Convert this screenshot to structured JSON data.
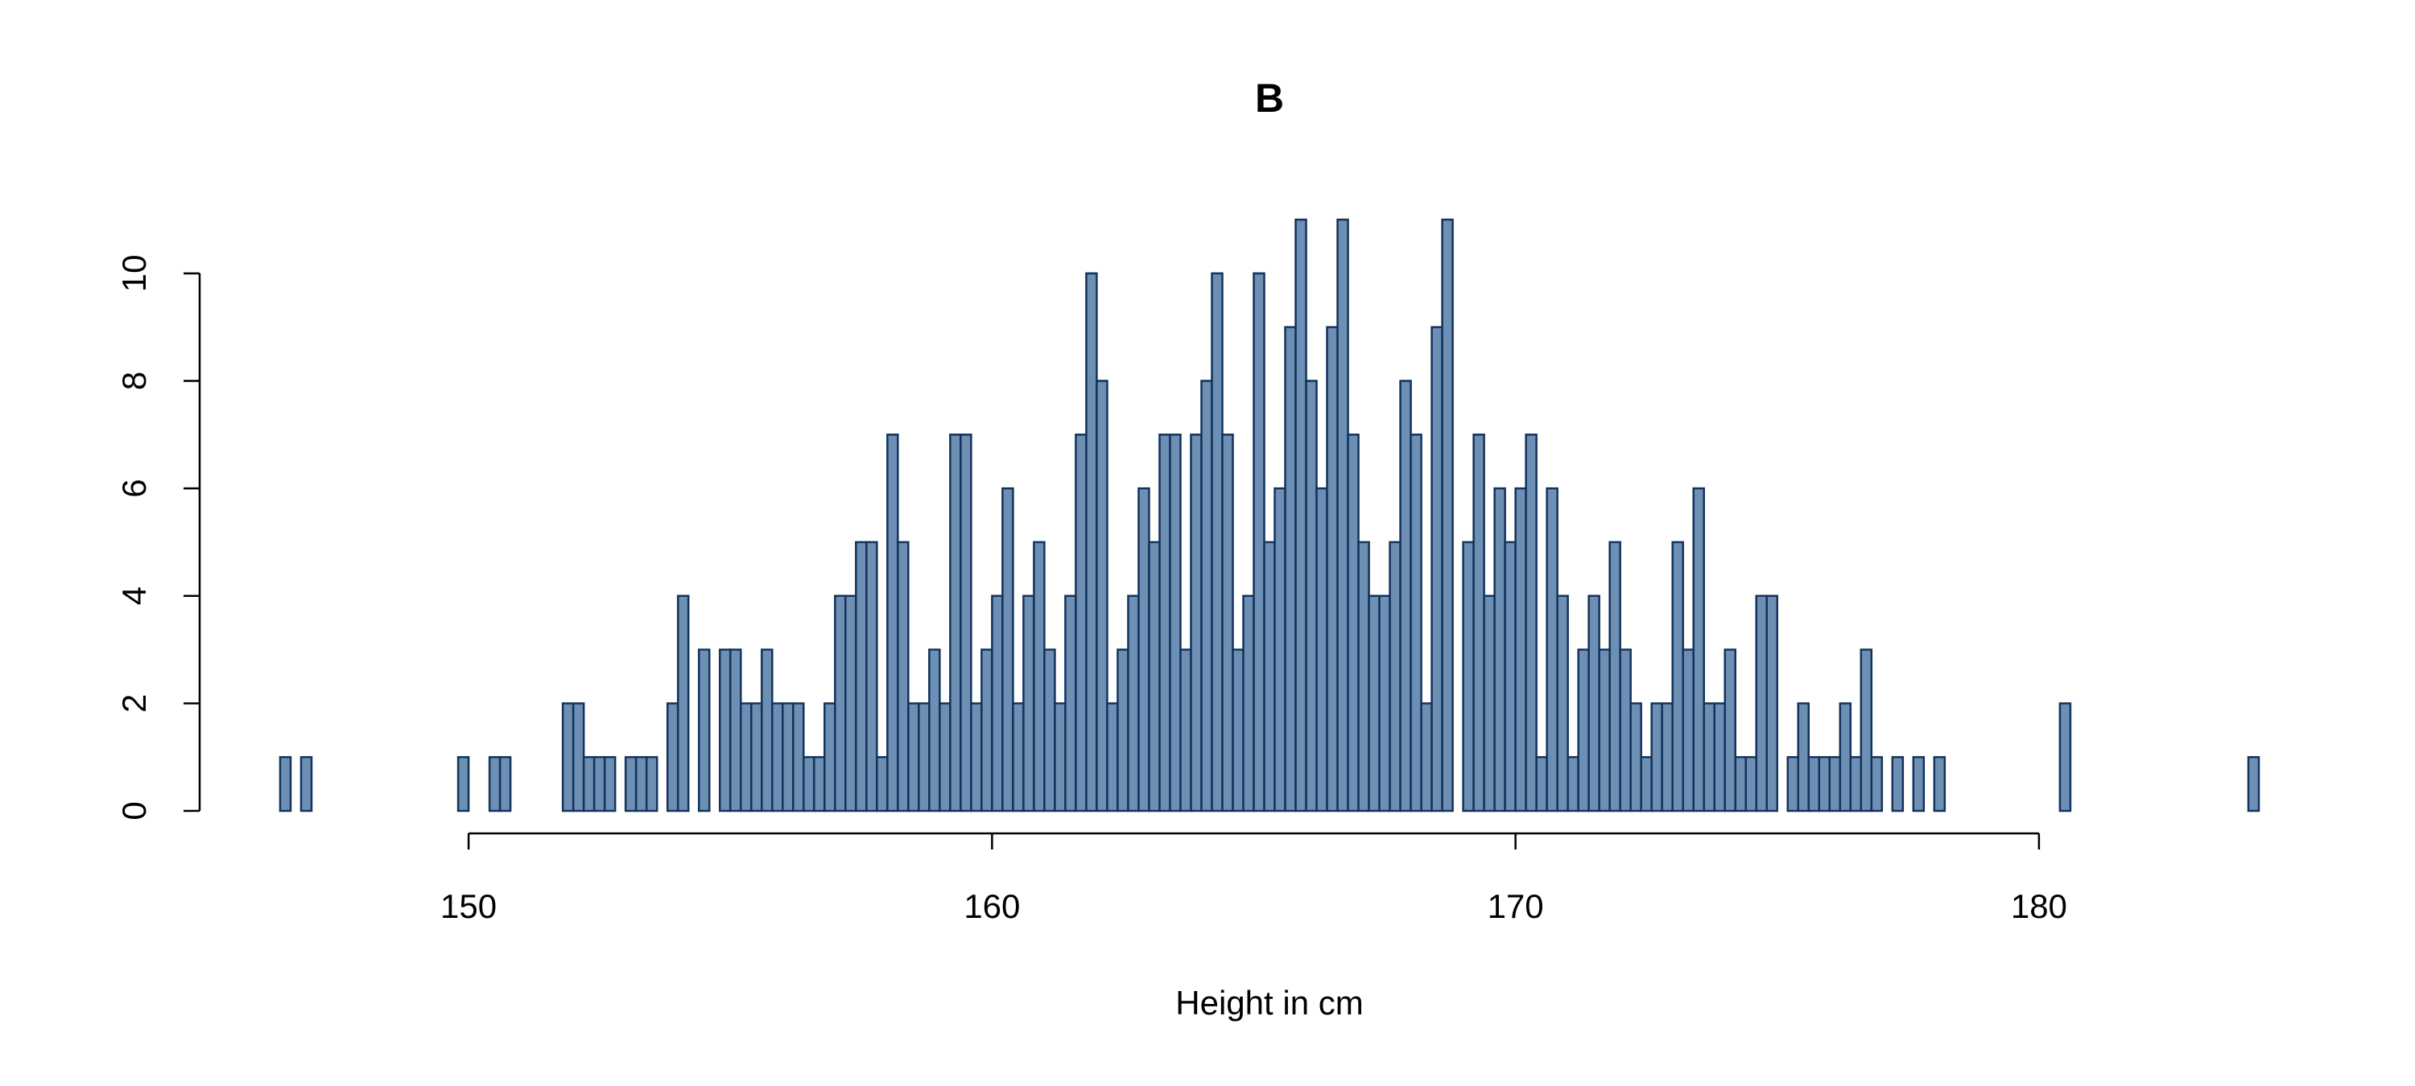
{
  "chart_data": {
    "type": "histogram",
    "title": "B",
    "x_label": "Height in cm",
    "bins": [
      146.4,
      146.6,
      146.8,
      147,
      147.2,
      147.4,
      147.6,
      147.8,
      148,
      148.2,
      148.4,
      148.6,
      148.8,
      149,
      149.2,
      149.4,
      149.6,
      149.8,
      150,
      150.2,
      150.4,
      150.6,
      150.8,
      151,
      151.2,
      151.4,
      151.6,
      151.8,
      152,
      152.2,
      152.4,
      152.6,
      152.8,
      153,
      153.2,
      153.4,
      153.6,
      153.8,
      154,
      154.2,
      154.4,
      154.6,
      154.8,
      155,
      155.2,
      155.4,
      155.6,
      155.8,
      156,
      156.2,
      156.4,
      156.6,
      156.8,
      157,
      157.2,
      157.4,
      157.6,
      157.8,
      158,
      158.2,
      158.4,
      158.6,
      158.8,
      159,
      159.2,
      159.4,
      159.6,
      159.8,
      160,
      160.2,
      160.4,
      160.6,
      160.8,
      161,
      161.2,
      161.4,
      161.6,
      161.8,
      162,
      162.2,
      162.4,
      162.6,
      162.8,
      163,
      163.2,
      163.4,
      163.6,
      163.8,
      164,
      164.2,
      164.4,
      164.6,
      164.8,
      165,
      165.2,
      165.4,
      165.6,
      165.8,
      166,
      166.2,
      166.4,
      166.6,
      166.8,
      167,
      167.2,
      167.4,
      167.6,
      167.8,
      168,
      168.2,
      168.4,
      168.6,
      168.8,
      169,
      169.2,
      169.4,
      169.6,
      169.8,
      170,
      170.2,
      170.4,
      170.6,
      170.8,
      171,
      171.2,
      171.4,
      171.6,
      171.8,
      172,
      172.2,
      172.4,
      172.6,
      172.8,
      173,
      173.2,
      173.4,
      173.6,
      173.8,
      174,
      174.2,
      174.4,
      174.6,
      174.8,
      175,
      175.2,
      175.4,
      175.6,
      175.8,
      176,
      176.2,
      176.4,
      176.6,
      176.8,
      177,
      177.2,
      177.4,
      177.6,
      177.8,
      178,
      178.2,
      178.4,
      178.6,
      178.8,
      179,
      179.2,
      179.4,
      179.6,
      179.8,
      180,
      180.2,
      180.4,
      180.6,
      180.8,
      181,
      181.2,
      181.4,
      181.6,
      181.8,
      182,
      182.2,
      182.4,
      182.6,
      182.8,
      183,
      183.2,
      183.4,
      183.6,
      183.8,
      184,
      184.2
    ],
    "counts": [
      1,
      0,
      1,
      0,
      0,
      0,
      0,
      0,
      0,
      0,
      0,
      0,
      0,
      0,
      0,
      0,
      0,
      1,
      0,
      0,
      1,
      1,
      0,
      0,
      0,
      0,
      0,
      2,
      2,
      1,
      1,
      1,
      0,
      1,
      1,
      1,
      0,
      2,
      4,
      0,
      3,
      0,
      3,
      3,
      2,
      2,
      3,
      2,
      2,
      2,
      1,
      1,
      2,
      4,
      4,
      5,
      5,
      1,
      7,
      5,
      2,
      2,
      3,
      2,
      7,
      7,
      2,
      3,
      4,
      6,
      2,
      4,
      5,
      3,
      2,
      4,
      7,
      10,
      8,
      2,
      3,
      4,
      6,
      5,
      7,
      7,
      3,
      7,
      8,
      10,
      7,
      3,
      4,
      10,
      5,
      6,
      9,
      11,
      8,
      6,
      9,
      11,
      7,
      5,
      4,
      4,
      5,
      8,
      7,
      2,
      9,
      11,
      0,
      5,
      7,
      4,
      6,
      5,
      6,
      7,
      1,
      6,
      4,
      1,
      3,
      4,
      3,
      5,
      3,
      2,
      1,
      2,
      2,
      5,
      3,
      6,
      2,
      2,
      3,
      1,
      1,
      4,
      4,
      0,
      1,
      2,
      1,
      1,
      1,
      2,
      1,
      3,
      1,
      0,
      1,
      0,
      1,
      0,
      1,
      0,
      0,
      0,
      0,
      0,
      0,
      0,
      0,
      0,
      0,
      0,
      2,
      0,
      0,
      0,
      0,
      0,
      0,
      0,
      0,
      0,
      0,
      0,
      0,
      0,
      0,
      0,
      0,
      0,
      1
    ],
    "xlim": [
      146.4,
      184.2
    ],
    "xticks": [
      150,
      160,
      170,
      180
    ],
    "ylim": [
      0,
      11
    ],
    "yticks": [
      0,
      2,
      4,
      6,
      8,
      10
    ],
    "color": "#6d8fb3",
    "edgecolor": "#12335c"
  }
}
